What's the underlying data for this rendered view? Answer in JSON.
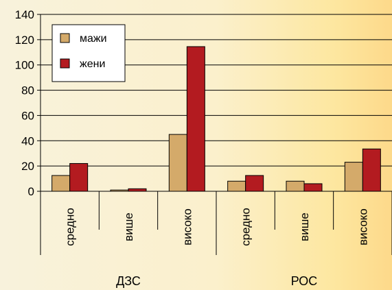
{
  "chart_data": {
    "type": "bar",
    "groups": [
      {
        "label": "ДЗС",
        "categories": [
          "средно",
          "више",
          "високо"
        ]
      },
      {
        "label": "РОС",
        "categories": [
          "средно",
          "више",
          "високо"
        ]
      }
    ],
    "categories": [
      "средно",
      "више",
      "високо",
      "средно",
      "више",
      "високо"
    ],
    "series": [
      {
        "name": "мажи",
        "values": [
          12.5,
          1,
          45,
          8,
          8,
          23
        ],
        "color": "#d4aa6a"
      },
      {
        "name": "жени",
        "values": [
          22,
          2,
          114.5,
          12.5,
          6,
          33.5
        ],
        "color": "#b31b20"
      }
    ],
    "ylim": [
      0,
      140
    ],
    "yticks": [
      0,
      20,
      40,
      60,
      80,
      100,
      120,
      140
    ],
    "legend_position": "top-left",
    "grid": true
  }
}
